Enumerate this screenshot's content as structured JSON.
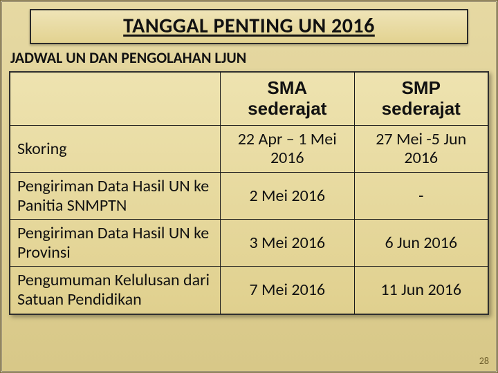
{
  "title": "TANGGAL PENTING UN 2016",
  "subtitle": "JADWAL UN DAN PENGOLAHAN LJUN",
  "page_number": "28",
  "colors": {
    "background_top": "#e6d9a3",
    "background_bottom": "#d8c888",
    "title_bg_top": "#efe4b7",
    "title_bg_bottom": "#e2d290",
    "border": "#2a2a2a",
    "shadow": "rgba(0,0,0,0.35)",
    "text": "#111111",
    "page_num_color": "#6b5c2a"
  },
  "typography": {
    "title_fontsize_pt": 22,
    "title_weight": 900,
    "subtitle_fontsize_pt": 17,
    "subtitle_weight": 800,
    "header_fontsize_pt": 20,
    "cell_fontsize_pt": 18,
    "font_family": "Calibri"
  },
  "table": {
    "type": "table",
    "column_widths_pct": [
      44,
      28,
      28
    ],
    "columns": [
      "",
      "SMA sederajat",
      "SMP sederajat"
    ],
    "rows": [
      {
        "label": "Skoring",
        "sma": "22 Apr – 1 Mei 2016",
        "smp": "27  Mei -5  Jun 2016"
      },
      {
        "label": "Pengiriman Data Hasil UN ke Panitia SNMPTN",
        "sma": "2 Mei 2016",
        "smp": "-"
      },
      {
        "label": "Pengiriman Data Hasil UN ke Provinsi",
        "sma": "3 Mei 2016",
        "smp": "6 Jun 2016"
      },
      {
        "label": "Pengumuman Kelulusan dari Satuan Pendidikan",
        "sma": "7  Mei 2016",
        "smp": "11 Jun 2016"
      }
    ]
  }
}
